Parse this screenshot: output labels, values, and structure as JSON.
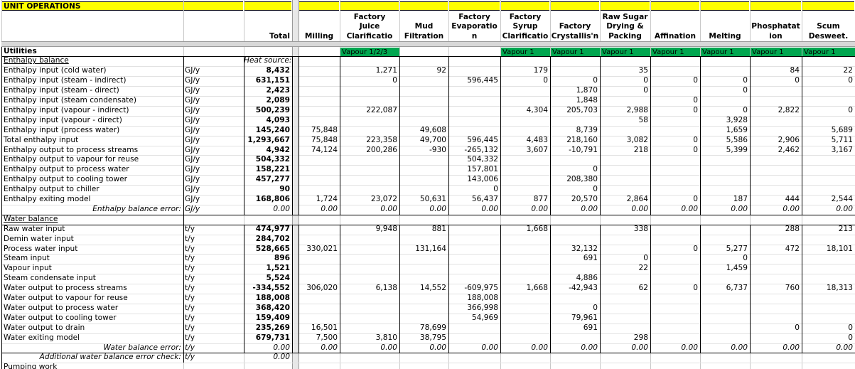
{
  "title": "UNIT OPERATIONS",
  "columns": [
    "Total",
    "Milling",
    "Factory\nJuice\nClarificatio",
    "Mud\nFiltration",
    "Factory\nEvaporatio\nn",
    "Factory\nSyrup\nClarificatio",
    "Factory\nCrystallis'n",
    "Raw Sugar\nDrying &\nPacking",
    "Affination",
    "Melting",
    "Phosphatat\nion",
    "Scum\nDesweet."
  ],
  "section_utilities": "Utilities",
  "vapour_tags": [
    "",
    "",
    "Vapour 1/2/3",
    "",
    "",
    "Vapour 1",
    "Vapour 1",
    "Vapour 1",
    "Vapour 1",
    "Vapour 1",
    "Vapour 1",
    "Vapour 1"
  ],
  "rows": [
    {
      "label": "Enthalpy balance",
      "unit": "",
      "total": "Heat source:",
      "vals": [
        "",
        "",
        "",
        "",
        "",
        "",
        "",
        "",
        "",
        "",
        ""
      ],
      "style": "section"
    },
    {
      "label": "Enthalpy input (cold water)",
      "unit": "GJ/y",
      "total": "8,432",
      "vals": [
        "",
        "1,271",
        "92",
        "",
        "179",
        "",
        "35",
        "",
        "",
        "84",
        "22"
      ]
    },
    {
      "label": "Enthalpy input (steam - indirect)",
      "unit": "GJ/y",
      "total": "631,151",
      "vals": [
        "",
        "0",
        "",
        "596,445",
        "0",
        "0",
        "0",
        "0",
        "0",
        "0",
        "0"
      ]
    },
    {
      "label": "Enthalpy input (steam - direct)",
      "unit": "GJ/y",
      "total": "2,423",
      "vals": [
        "",
        "",
        "",
        "",
        "",
        "1,870",
        "0",
        "",
        "0",
        "",
        ""
      ]
    },
    {
      "label": "Enthalpy input (steam condensate)",
      "unit": "GJ/y",
      "total": "2,089",
      "vals": [
        "",
        "",
        "",
        "",
        "",
        "1,848",
        "",
        "0",
        "",
        "",
        ""
      ]
    },
    {
      "label": "Enthalpy input (vapour - indirect)",
      "unit": "GJ/y",
      "total": "500,239",
      "vals": [
        "",
        "222,087",
        "",
        "",
        "4,304",
        "205,703",
        "2,988",
        "0",
        "0",
        "2,822",
        "0"
      ]
    },
    {
      "label": "Enthalpy input (vapour - direct)",
      "unit": "GJ/y",
      "total": "4,093",
      "vals": [
        "",
        "",
        "",
        "",
        "",
        "",
        "58",
        "",
        "3,928",
        "",
        ""
      ]
    },
    {
      "label": "Enthalpy input (process water)",
      "unit": "GJ/y",
      "total": "145,240",
      "vals": [
        "75,848",
        "",
        "49,608",
        "",
        "",
        "8,739",
        "",
        "",
        "1,659",
        "",
        "5,689"
      ]
    },
    {
      "label": "Total enthalpy input",
      "unit": "GJ/y",
      "total": "1,293,667",
      "vals": [
        "75,848",
        "223,358",
        "49,700",
        "596,445",
        "4,483",
        "218,160",
        "3,082",
        "0",
        "5,586",
        "2,906",
        "5,711"
      ]
    },
    {
      "label": "Enthalpy output to process streams",
      "unit": "GJ/y",
      "total": "4,942",
      "vals": [
        "74,124",
        "200,286",
        "-930",
        "-265,132",
        "3,607",
        "-10,791",
        "218",
        "0",
        "5,399",
        "2,462",
        "3,167"
      ]
    },
    {
      "label": "Enthalpy output to vapour for reuse",
      "unit": "GJ/y",
      "total": "504,332",
      "vals": [
        "",
        "",
        "",
        "504,332",
        "",
        "",
        "",
        "",
        "",
        "",
        ""
      ]
    },
    {
      "label": "Enthalpy output to process water",
      "unit": "GJ/y",
      "total": "158,221",
      "vals": [
        "",
        "",
        "",
        "157,801",
        "",
        "0",
        "",
        "",
        "",
        "",
        ""
      ]
    },
    {
      "label": "Enthalpy output to cooling tower",
      "unit": "GJ/y",
      "total": "457,277",
      "vals": [
        "",
        "",
        "",
        "143,006",
        "",
        "208,380",
        "",
        "",
        "",
        "",
        ""
      ]
    },
    {
      "label": "Enthalpy output to chiller",
      "unit": "GJ/y",
      "total": "90",
      "vals": [
        "",
        "",
        "",
        "0",
        "",
        "0",
        "",
        "",
        "",
        "",
        ""
      ]
    },
    {
      "label": "Enthalpy exiting model",
      "unit": "GJ/y",
      "total": "168,806",
      "vals": [
        "1,724",
        "23,072",
        "50,631",
        "56,437",
        "877",
        "20,570",
        "2,864",
        "0",
        "187",
        "444",
        "2,544"
      ]
    },
    {
      "label": "Enthalpy balance error:",
      "unit": "GJ/y",
      "total": "0.00",
      "vals": [
        "0.00",
        "0.00",
        "0.00",
        "0.00",
        "0.00",
        "0.00",
        "0.00",
        "0.00",
        "0.00",
        "0.00",
        "0.00"
      ],
      "style": "error"
    },
    {
      "label": "Water balance",
      "unit": "",
      "total": "",
      "vals": [
        "",
        "",
        "",
        "",
        "",
        "",
        "",
        "",
        "",
        "",
        ""
      ],
      "style": "section"
    },
    {
      "label": "Raw water input",
      "unit": "t/y",
      "total": "474,977",
      "vals": [
        "",
        "9,948",
        "881",
        "",
        "1,668",
        "",
        "338",
        "",
        "",
        "288",
        "213"
      ]
    },
    {
      "label": "Demin water input",
      "unit": "t/y",
      "total": "284,702",
      "vals": [
        "",
        "",
        "",
        "",
        "",
        "",
        "",
        "",
        "",
        "",
        ""
      ]
    },
    {
      "label": "Process water input",
      "unit": "t/y",
      "total": "528,665",
      "vals": [
        "330,021",
        "",
        "131,164",
        "",
        "",
        "32,132",
        "",
        "0",
        "5,277",
        "472",
        "18,101"
      ]
    },
    {
      "label": "Steam input",
      "unit": "t/y",
      "total": "896",
      "vals": [
        "",
        "",
        "",
        "",
        "",
        "691",
        "0",
        "",
        "0",
        "",
        ""
      ]
    },
    {
      "label": "Vapour input",
      "unit": "t/y",
      "total": "1,521",
      "vals": [
        "",
        "",
        "",
        "",
        "",
        "",
        "22",
        "",
        "1,459",
        "",
        ""
      ]
    },
    {
      "label": "Steam condensate input",
      "unit": "t/y",
      "total": "5,524",
      "vals": [
        "",
        "",
        "",
        "",
        "",
        "4,886",
        "",
        "",
        "",
        "",
        ""
      ]
    },
    {
      "label": "Water output to process streams",
      "unit": "t/y",
      "total": "-334,552",
      "vals": [
        "306,020",
        "6,138",
        "14,552",
        "-609,975",
        "1,668",
        "-42,943",
        "62",
        "0",
        "6,737",
        "760",
        "18,313"
      ]
    },
    {
      "label": "Water output to vapour for reuse",
      "unit": "t/y",
      "total": "188,008",
      "vals": [
        "",
        "",
        "",
        "188,008",
        "",
        "",
        "",
        "",
        "",
        "",
        ""
      ]
    },
    {
      "label": "Water output to process water",
      "unit": "t/y",
      "total": "368,420",
      "vals": [
        "",
        "",
        "",
        "366,998",
        "",
        "0",
        "",
        "",
        "",
        "",
        ""
      ]
    },
    {
      "label": "Water output to cooling tower",
      "unit": "t/y",
      "total": "159,409",
      "vals": [
        "",
        "",
        "",
        "54,969",
        "",
        "79,961",
        "",
        "",
        "",
        "",
        ""
      ]
    },
    {
      "label": "Water output to drain",
      "unit": "t/y",
      "total": "235,269",
      "vals": [
        "16,501",
        "",
        "78,699",
        "",
        "",
        "691",
        "",
        "",
        "",
        "0",
        "0"
      ]
    },
    {
      "label": "Water exiting model",
      "unit": "t/y",
      "total": "679,731",
      "vals": [
        "7,500",
        "3,810",
        "38,795",
        "",
        "",
        "",
        "298",
        "",
        "",
        "",
        "0"
      ]
    },
    {
      "label": "Water balance error:",
      "unit": "t/y",
      "total": "0.00",
      "vals": [
        "0.00",
        "0.00",
        "0.00",
        "0.00",
        "0.00",
        "0.00",
        "0.00",
        "0.00",
        "0.00",
        "0.00",
        "0.00"
      ],
      "style": "error"
    },
    {
      "label": "Additional water balance error check:",
      "unit": "t/y",
      "total": "0.00",
      "vals": [
        "",
        "",
        "",
        "",
        "",
        "",
        "",
        "",
        "",
        "",
        ""
      ],
      "style": "error"
    },
    {
      "label": "Pumping work",
      "unit": "",
      "total": "",
      "vals": [
        "",
        "",
        "",
        "",
        "",
        "",
        "",
        "",
        "",
        "",
        ""
      ]
    }
  ],
  "colors": {
    "title_bg": "#ffff00",
    "vapour_bg": "#00a64f",
    "grid": "#c8c8c8",
    "separator": "#d4d4d4"
  }
}
